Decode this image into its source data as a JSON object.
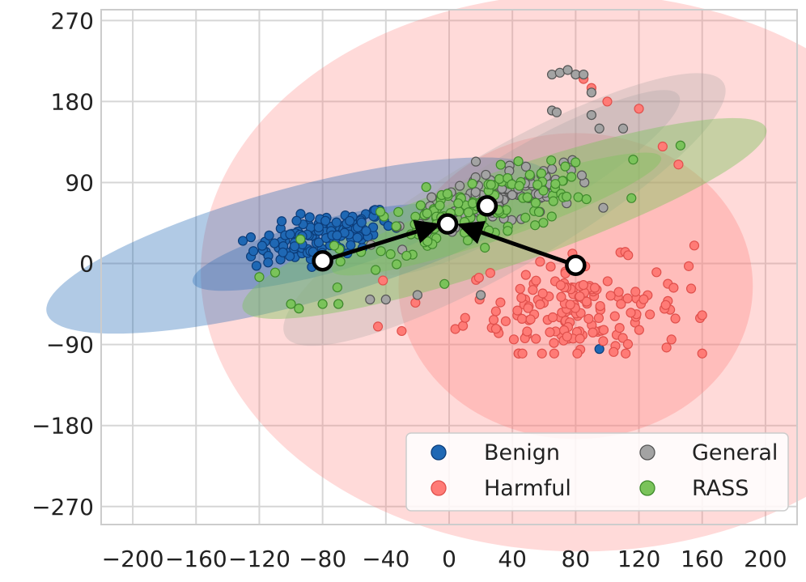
{
  "chart_data": {
    "type": "scatter",
    "title": "",
    "xlabel": "",
    "ylabel": "",
    "xlim": [
      -220,
      220
    ],
    "ylim": [
      -290,
      282
    ],
    "xticks": [
      -200,
      -160,
      -120,
      -80,
      -40,
      0,
      40,
      80,
      120,
      160,
      200
    ],
    "yticks": [
      270,
      180,
      90,
      0,
      -90,
      -180,
      -270
    ],
    "xtick_labels": [
      "−200",
      "−160",
      "−120",
      "−80",
      "−40",
      "0",
      "40",
      "80",
      "120",
      "160",
      "200"
    ],
    "ytick_labels": [
      "270",
      "180",
      "90",
      "0",
      "−90",
      "−180",
      "−270"
    ],
    "grid": true,
    "legend": {
      "placement": "lower-right",
      "columns": 2,
      "entries": [
        {
          "key": "benign",
          "label": "Benign"
        },
        {
          "key": "general",
          "label": "General"
        },
        {
          "key": "harmful",
          "label": "Harmful"
        },
        {
          "key": "rass",
          "label": "RASS"
        }
      ]
    },
    "colors": {
      "benign": "#1f68b4",
      "benign_edge": "#0c3d7a",
      "general": "#a3a3a3",
      "general_edge": "#555555",
      "harmful": "#ff7b76",
      "harmful_edge": "#e0504c",
      "rass": "#7ac35a",
      "rass_edge": "#3f8a2c",
      "arrow": "#000000"
    },
    "series": [
      {
        "key": "benign",
        "name": "Benign",
        "center": [
          -80,
          30
        ],
        "spread": [
          22,
          20
        ],
        "count": 130,
        "extra_points": [
          [
            95,
            -95
          ]
        ]
      },
      {
        "key": "harmful",
        "name": "Harmful",
        "center": [
          80,
          -50
        ],
        "spread": [
          35,
          45
        ],
        "count": 170,
        "extra_points": [
          [
            85,
            205
          ],
          [
            90,
            195
          ],
          [
            100,
            180
          ],
          [
            120,
            172
          ],
          [
            135,
            130
          ],
          [
            145,
            110
          ],
          [
            155,
            20
          ],
          [
            -45,
            -70
          ],
          [
            -30,
            -75
          ]
        ]
      },
      {
        "key": "general",
        "name": "General",
        "center": [
          30,
          70
        ],
        "spread": [
          30,
          25
        ],
        "count": 120,
        "extra_points": [
          [
            65,
            210
          ],
          [
            70,
            212
          ],
          [
            75,
            215
          ],
          [
            80,
            210
          ],
          [
            85,
            210
          ],
          [
            90,
            190
          ],
          [
            65,
            170
          ],
          [
            68,
            168
          ],
          [
            90,
            165
          ],
          [
            95,
            150
          ],
          [
            110,
            150
          ],
          [
            20,
            -35
          ],
          [
            -20,
            -35
          ],
          [
            -40,
            -40
          ],
          [
            -50,
            -40
          ],
          [
            -70,
            -45
          ]
        ]
      },
      {
        "key": "rass",
        "name": "RASS",
        "center": [
          20,
          60
        ],
        "spread": [
          40,
          30
        ],
        "count": 140,
        "extra_points": [
          [
            -100,
            -45
          ],
          [
            -95,
            -50
          ],
          [
            -80,
            -45
          ],
          [
            -70,
            -45
          ],
          [
            -120,
            -15
          ],
          [
            -110,
            -10
          ]
        ]
      }
    ],
    "ellipses": [
      {
        "key": "harmful",
        "center": [
          83,
          -10
        ],
        "rx": 240,
        "ry": 310,
        "angle": 0,
        "opacity": 0.28
      },
      {
        "key": "harmful",
        "center": [
          80,
          -25
        ],
        "rx": 112,
        "ry": 170,
        "angle": 0,
        "opacity": 0.3
      },
      {
        "key": "benign",
        "center": [
          -95,
          20
        ],
        "rx": 165,
        "ry": 65,
        "angle": 15,
        "opacity": 0.35
      },
      {
        "key": "benign",
        "center": [
          -80,
          18
        ],
        "rx": 85,
        "ry": 30,
        "angle": 15,
        "opacity": 0.32
      },
      {
        "key": "general",
        "center": [
          35,
          60
        ],
        "rx": 160,
        "ry": 65,
        "angle": 30,
        "opacity": 0.28
      },
      {
        "key": "general",
        "center": [
          50,
          90
        ],
        "rx": 110,
        "ry": 40,
        "angle": 30,
        "opacity": 0.28
      },
      {
        "key": "rass",
        "center": [
          35,
          50
        ],
        "rx": 175,
        "ry": 52,
        "angle": 19,
        "opacity": 0.42
      },
      {
        "key": "rass",
        "center": [
          30,
          55
        ],
        "rx": 110,
        "ry": 28,
        "angle": 19,
        "opacity": 0.4
      }
    ],
    "centroids": [
      {
        "key": "benign",
        "x": -80,
        "y": 3
      },
      {
        "key": "harmful",
        "x": 80,
        "y": -2
      },
      {
        "key": "rass",
        "x": -1,
        "y": 44
      },
      {
        "key": "general",
        "x": 24,
        "y": 64
      }
    ],
    "arrows": [
      {
        "from": [
          -80,
          3
        ],
        "to": [
          -5,
          44
        ]
      },
      {
        "from": [
          80,
          -2
        ],
        "to": [
          5,
          44
        ]
      }
    ]
  }
}
